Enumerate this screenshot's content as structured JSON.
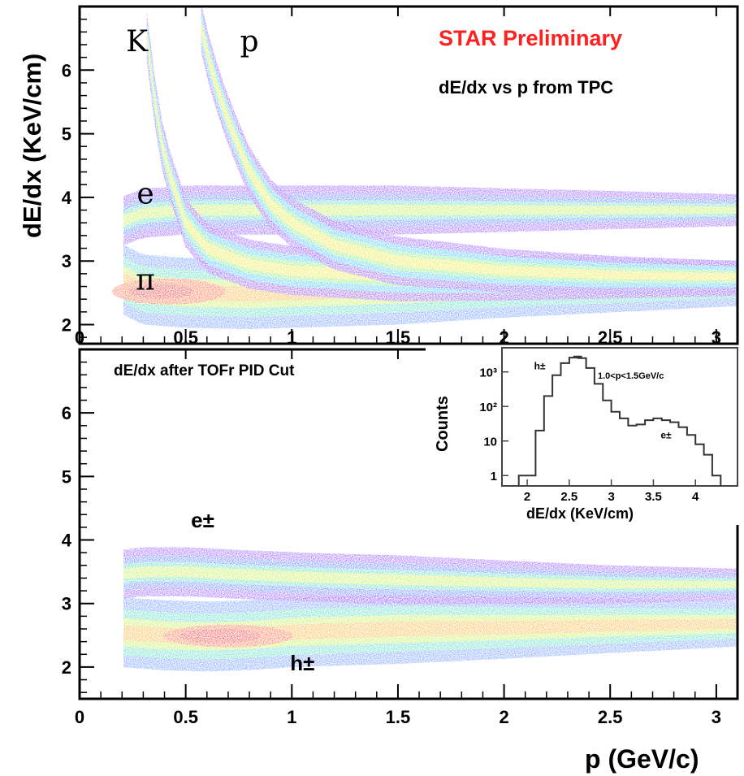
{
  "colors": {
    "heat": [
      "#5a00ff",
      "#2060ff",
      "#00c8ff",
      "#20e0a0",
      "#60f030",
      "#c8f000",
      "#ffe000",
      "#ff9000",
      "#ff3000",
      "#e00000"
    ],
    "preliminary": "#ff2020",
    "frame": "#000000"
  },
  "chart_data": [
    {
      "type": "heatmap",
      "panel": "top",
      "title": "dE/dx vs p from TPC",
      "banner": "STAR Preliminary",
      "xlabel": "",
      "ylabel": "dE/dx (KeV/cm)",
      "xlim": [
        0,
        3.1
      ],
      "ylim": [
        1.7,
        7.0
      ],
      "x_ticks": [
        "0",
        "0.5",
        "1",
        "1.5",
        "2",
        "2.5",
        "3"
      ],
      "y_ticks": [
        "2",
        "3",
        "4",
        "5",
        "6"
      ],
      "bands": [
        {
          "label": "π",
          "points": [
            [
              0.18,
              2.75
            ],
            [
              0.3,
              2.55
            ],
            [
              0.5,
              2.5
            ],
            [
              0.8,
              2.48
            ],
            [
              1.0,
              2.5
            ],
            [
              1.5,
              2.55
            ],
            [
              2.0,
              2.6
            ],
            [
              2.5,
              2.62
            ],
            [
              3.1,
              2.65
            ]
          ],
          "peak": 1.0
        },
        {
          "label": "e",
          "points": [
            [
              0.18,
              3.6
            ],
            [
              0.3,
              3.75
            ],
            [
              0.5,
              3.8
            ],
            [
              0.8,
              3.8
            ],
            [
              1.0,
              3.8
            ]
          ],
          "peak": 0.45
        },
        {
          "label": "K",
          "points": [
            [
              0.3,
              7.0
            ],
            [
              0.35,
              5.6
            ],
            [
              0.4,
              4.6
            ],
            [
              0.5,
              3.6
            ],
            [
              0.6,
              3.2
            ],
            [
              0.8,
              2.95
            ],
            [
              1.0,
              2.85
            ],
            [
              1.5,
              2.75
            ],
            [
              2.0,
              2.72
            ],
            [
              3.1,
              2.7
            ]
          ],
          "peak": 0.55
        },
        {
          "label": "p",
          "points": [
            [
              0.55,
              7.0
            ],
            [
              0.62,
              6.0
            ],
            [
              0.7,
              5.2
            ],
            [
              0.8,
              4.4
            ],
            [
              0.9,
              3.9
            ],
            [
              1.0,
              3.6
            ],
            [
              1.2,
              3.25
            ],
            [
              1.5,
              3.0
            ],
            [
              2.0,
              2.85
            ],
            [
              2.5,
              2.78
            ],
            [
              3.1,
              2.75
            ]
          ],
          "peak": 0.55
        }
      ],
      "annotations": [
        {
          "text": "K",
          "x": 0.27,
          "y": 6.3
        },
        {
          "text": "p",
          "x": 0.8,
          "y": 6.3
        },
        {
          "text": "e",
          "x": 0.31,
          "y": 3.9
        },
        {
          "text": "π",
          "x": 0.31,
          "y": 2.55
        }
      ]
    },
    {
      "type": "heatmap",
      "panel": "bottom",
      "title": "dE/dx after TOFr PID Cut",
      "xlabel": "p (GeV/c)",
      "ylabel": "",
      "xlim": [
        0,
        3.1
      ],
      "ylim": [
        1.5,
        7.0
      ],
      "x_ticks": [
        "0",
        "0.5",
        "1",
        "1.5",
        "2",
        "2.5",
        "3"
      ],
      "y_ticks": [
        "2",
        "3",
        "4",
        "5",
        "6"
      ],
      "bands": [
        {
          "label": "h±",
          "points": [
            [
              0.18,
              2.55
            ],
            [
              0.4,
              2.5
            ],
            [
              0.6,
              2.48
            ],
            [
              0.8,
              2.5
            ],
            [
              1.0,
              2.55
            ],
            [
              1.5,
              2.6
            ],
            [
              2.0,
              2.62
            ],
            [
              2.5,
              2.65
            ],
            [
              3.1,
              2.68
            ]
          ],
          "peak": 1.0
        },
        {
          "label": "e±",
          "points": [
            [
              0.18,
              3.45
            ],
            [
              0.3,
              3.5
            ],
            [
              0.5,
              3.5
            ],
            [
              0.8,
              3.45
            ],
            [
              1.2,
              3.4
            ],
            [
              1.8,
              3.35
            ],
            [
              2.5,
              3.3
            ],
            [
              3.1,
              3.3
            ]
          ],
          "peak": 0.5
        }
      ],
      "annotations": [
        {
          "text": "e±",
          "x": 0.58,
          "y": 4.2
        },
        {
          "text": "h±",
          "x": 1.05,
          "y": 1.95
        }
      ]
    },
    {
      "type": "line",
      "panel": "inset",
      "xlabel": "dE/dx (KeV/cm)",
      "ylabel": "Counts",
      "log_y": true,
      "xlim": [
        1.7,
        4.5
      ],
      "ylim": [
        0.5,
        5000
      ],
      "x_ticks": [
        "2",
        "2.5",
        "3",
        "3.5",
        "4"
      ],
      "y_ticks": [
        "1",
        "10",
        "10²",
        "10³"
      ],
      "legend_text": "1.0<p<1.5GeV/c",
      "x": [
        1.95,
        2.05,
        2.15,
        2.25,
        2.35,
        2.45,
        2.55,
        2.6,
        2.65,
        2.75,
        2.85,
        2.95,
        3.05,
        3.15,
        3.25,
        3.35,
        3.45,
        3.55,
        3.65,
        3.75,
        3.85,
        3.95,
        4.05,
        4.15,
        4.25
      ],
      "y": [
        1,
        1,
        20,
        200,
        800,
        1800,
        2600,
        2800,
        2500,
        1300,
        450,
        150,
        70,
        45,
        28,
        30,
        40,
        45,
        40,
        35,
        25,
        15,
        8,
        4,
        1
      ],
      "annotations": [
        {
          "text": "h±",
          "x": 2.15,
          "y": 1200
        },
        {
          "text": "e±",
          "x": 3.65,
          "y": 12
        }
      ]
    }
  ]
}
